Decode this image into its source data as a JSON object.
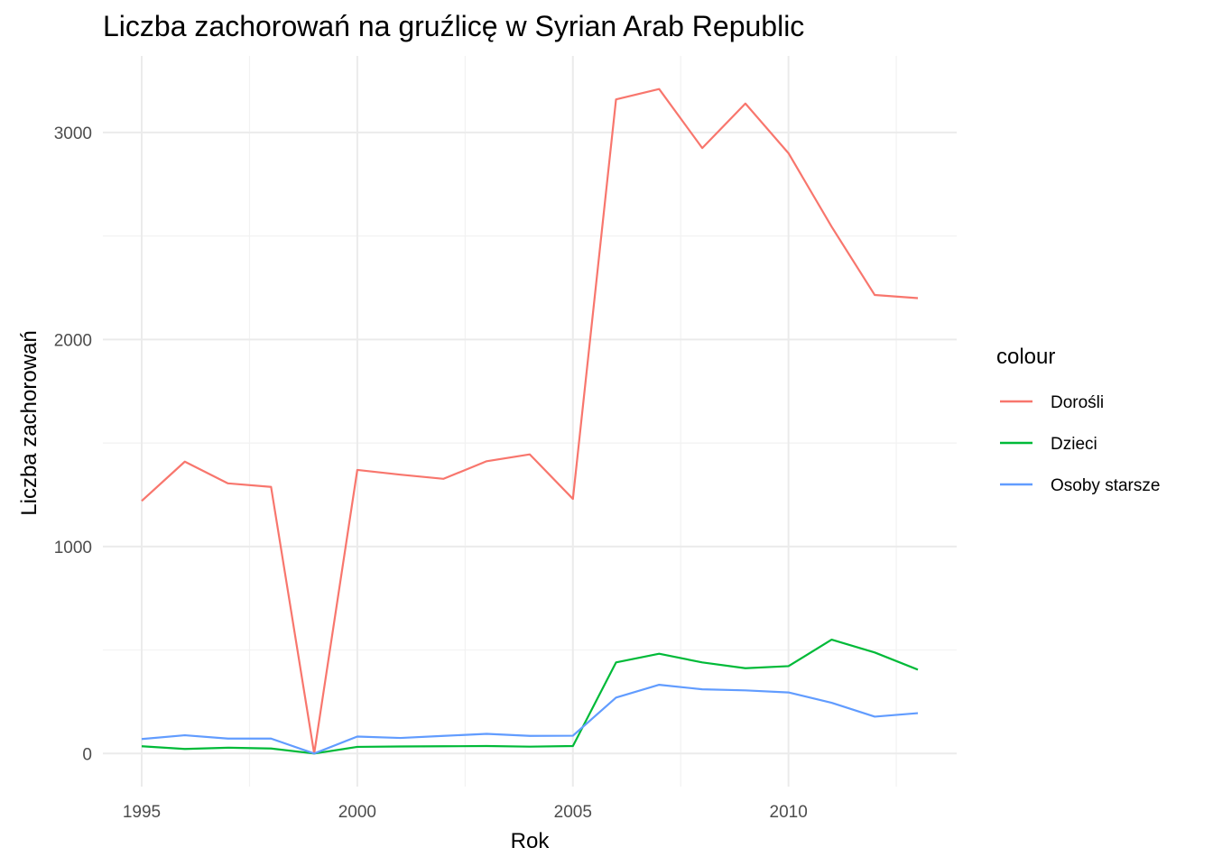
{
  "chart_data": {
    "type": "line",
    "title": "Liczba zachorowań na gruźlicę w Syrian Arab Republic",
    "xlabel": "Rok",
    "ylabel": "Liczba zachorowań",
    "x": [
      1995,
      1996,
      1997,
      1998,
      1999,
      2000,
      2001,
      2002,
      2003,
      2004,
      2005,
      2006,
      2007,
      2008,
      2009,
      2010,
      2011,
      2012,
      2013
    ],
    "xlim": [
      1994.1,
      2013.9
    ],
    "ylim": [
      -160,
      3370
    ],
    "x_ticks": [
      1995,
      2000,
      2005,
      2010
    ],
    "x_tick_labels": [
      "1995",
      "2000",
      "2005",
      "2010"
    ],
    "x_minor_ticks": [
      1997.5,
      2002.5,
      2007.5,
      2012.5
    ],
    "y_ticks": [
      0,
      1000,
      2000,
      3000
    ],
    "y_tick_labels": [
      "0",
      "1000",
      "2000",
      "3000"
    ],
    "y_minor_ticks": [
      500,
      1500,
      2500
    ],
    "grid": true,
    "legend": {
      "title": "colour",
      "position": "right"
    },
    "series": [
      {
        "name": "Dorośli",
        "color": "#F8766D",
        "values": [
          1220,
          1410,
          1305,
          1288,
          0,
          1370,
          1347,
          1327,
          1412,
          1445,
          1230,
          3160,
          3210,
          2925,
          3140,
          2900,
          2545,
          2215,
          2200
        ]
      },
      {
        "name": "Dzieci",
        "color": "#00BA38",
        "values": [
          35,
          22,
          28,
          24,
          0,
          32,
          34,
          35,
          36,
          33,
          36,
          440,
          482,
          440,
          412,
          422,
          550,
          488,
          405
        ]
      },
      {
        "name": "Osoby starsze",
        "color": "#619CFF",
        "values": [
          70,
          88,
          72,
          72,
          0,
          82,
          75,
          85,
          95,
          85,
          86,
          270,
          332,
          310,
          305,
          295,
          245,
          178,
          195
        ]
      }
    ]
  }
}
